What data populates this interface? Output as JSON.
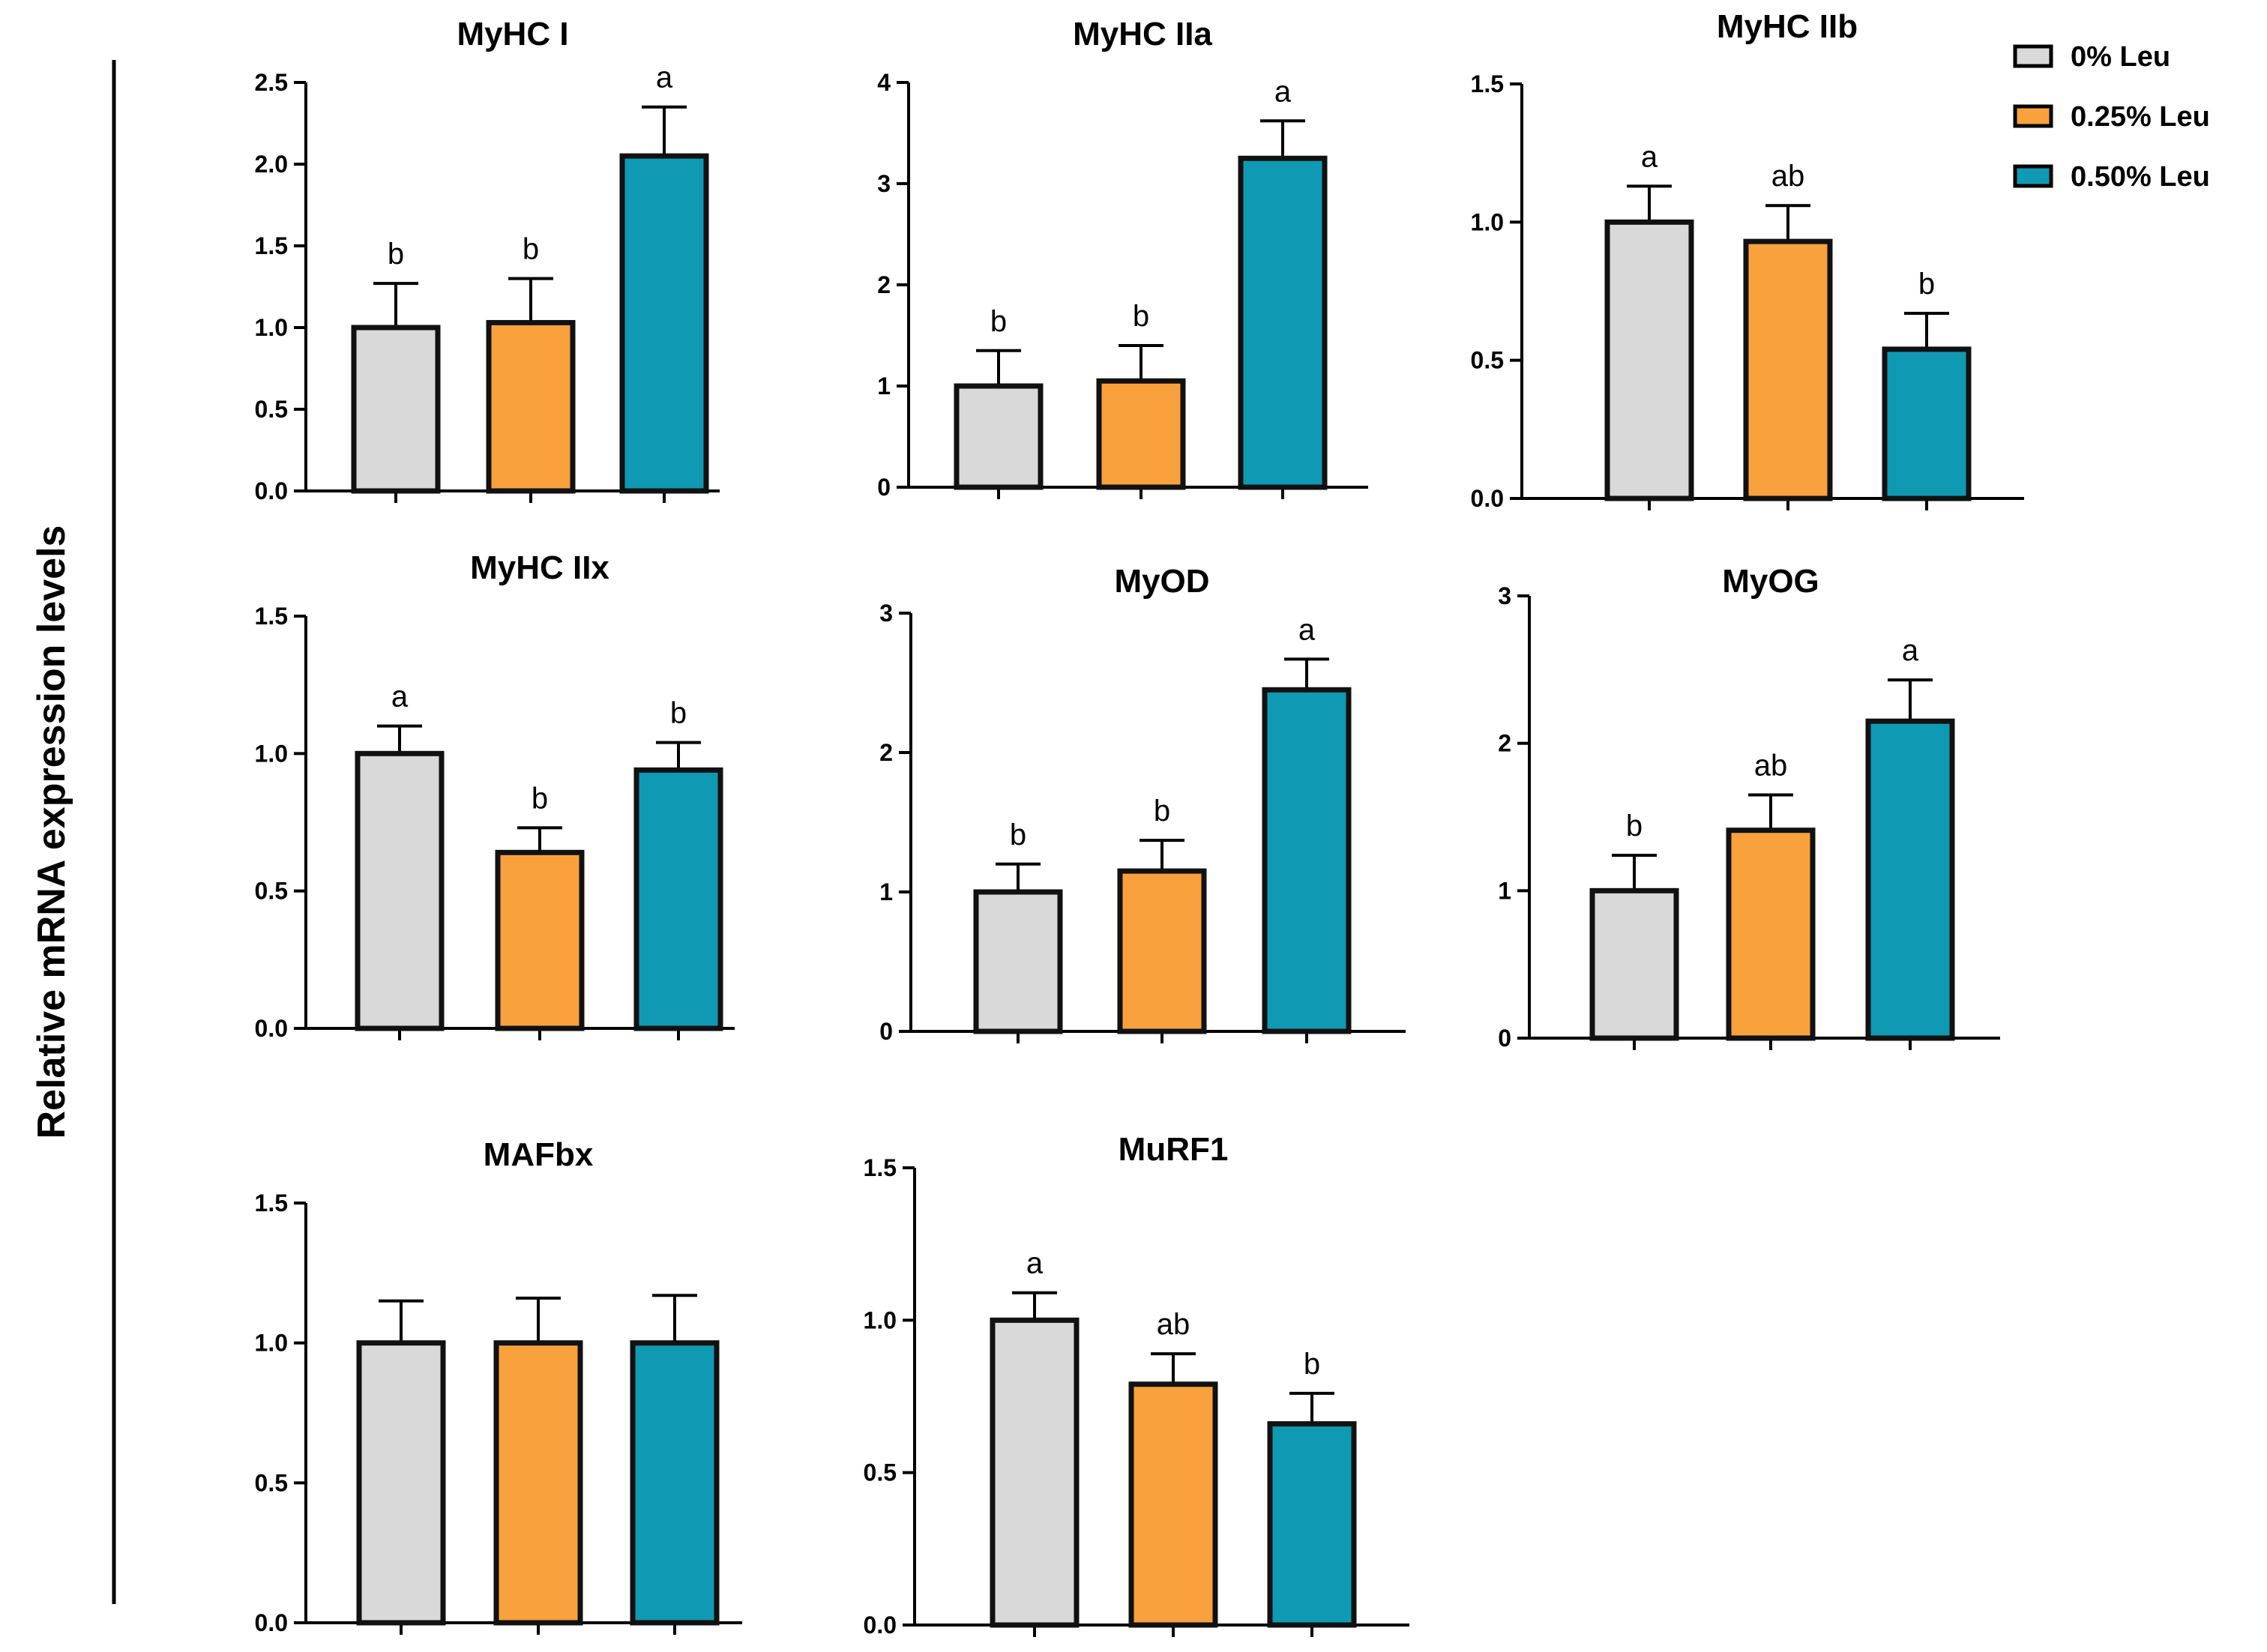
{
  "ylabel": "Relative mRNA expression levels",
  "legend": [
    {
      "label": "0% Leu",
      "color": "#d9d9d9"
    },
    {
      "label": "0.25% Leu",
      "color": "#f9a13d"
    },
    {
      "label": "0.50% Leu",
      "color": "#0f99b3"
    }
  ],
  "chart_data": [
    {
      "type": "bar",
      "title": "MyHC I",
      "categories": [
        "0% Leu",
        "0.25% Leu",
        "0.50% Leu"
      ],
      "values": [
        1.0,
        1.03,
        2.05
      ],
      "errors": [
        0.27,
        0.27,
        0.3
      ],
      "labels": [
        "b",
        "b",
        "a"
      ],
      "ylim": [
        0,
        2.5
      ],
      "yticks": [
        "0.0",
        "0.5",
        "1.0",
        "1.5",
        "2.0",
        "2.5"
      ]
    },
    {
      "type": "bar",
      "title": "MyHC IIa",
      "categories": [
        "0% Leu",
        "0.25% Leu",
        "0.50% Leu"
      ],
      "values": [
        1.0,
        1.05,
        3.25
      ],
      "errors": [
        0.35,
        0.35,
        0.37
      ],
      "labels": [
        "b",
        "b",
        "a"
      ],
      "ylim": [
        0,
        4
      ],
      "yticks": [
        "0",
        "1",
        "2",
        "3",
        "4"
      ]
    },
    {
      "type": "bar",
      "title": "MyHC IIb",
      "categories": [
        "0% Leu",
        "0.25% Leu",
        "0.50% Leu"
      ],
      "values": [
        1.0,
        0.93,
        0.54
      ],
      "errors": [
        0.13,
        0.13,
        0.13
      ],
      "labels": [
        "a",
        "ab",
        "b"
      ],
      "ylim": [
        0,
        1.5
      ],
      "yticks": [
        "0.0",
        "0.5",
        "1.0",
        "1.5"
      ]
    },
    {
      "type": "bar",
      "title": "MyHC IIx",
      "categories": [
        "0% Leu",
        "0.25% Leu",
        "0.50% Leu"
      ],
      "values": [
        1.0,
        0.64,
        0.94
      ],
      "errors": [
        0.1,
        0.09,
        0.1
      ],
      "labels": [
        "a",
        "b",
        "b"
      ],
      "ylim": [
        0,
        1.5
      ],
      "yticks": [
        "0.0",
        "0.5",
        "1.0",
        "1.5"
      ]
    },
    {
      "type": "bar",
      "title": "MyOD",
      "categories": [
        "0% Leu",
        "0.25% Leu",
        "0.50% Leu"
      ],
      "values": [
        1.0,
        1.15,
        2.45
      ],
      "errors": [
        0.2,
        0.22,
        0.22
      ],
      "labels": [
        "b",
        "b",
        "a"
      ],
      "ylim": [
        0,
        3
      ],
      "yticks": [
        "0",
        "1",
        "2",
        "3"
      ]
    },
    {
      "type": "bar",
      "title": "MyOG",
      "categories": [
        "0% Leu",
        "0.25% Leu",
        "0.50% Leu"
      ],
      "values": [
        1.0,
        1.41,
        2.15
      ],
      "errors": [
        0.24,
        0.24,
        0.28
      ],
      "labels": [
        "b",
        "ab",
        "a"
      ],
      "ylim": [
        0,
        3
      ],
      "yticks": [
        "0",
        "1",
        "2",
        "3"
      ]
    },
    {
      "type": "bar",
      "title": "MAFbx",
      "categories": [
        "0% Leu",
        "0.25% Leu",
        "0.50% Leu"
      ],
      "values": [
        1.0,
        1.0,
        1.0
      ],
      "errors": [
        0.15,
        0.16,
        0.17
      ],
      "labels": [
        "",
        "",
        ""
      ],
      "ylim": [
        0,
        1.5
      ],
      "yticks": [
        "0.0",
        "0.5",
        "1.0",
        "1.5"
      ]
    },
    {
      "type": "bar",
      "title": "MuRF1",
      "categories": [
        "0% Leu",
        "0.25% Leu",
        "0.50% Leu"
      ],
      "values": [
        1.0,
        0.79,
        0.66
      ],
      "errors": [
        0.09,
        0.1,
        0.1
      ],
      "labels": [
        "a",
        "ab",
        "b"
      ],
      "ylim": [
        0,
        1.5
      ],
      "yticks": [
        "0.0",
        "0.5",
        "1.0",
        "1.5"
      ]
    }
  ]
}
